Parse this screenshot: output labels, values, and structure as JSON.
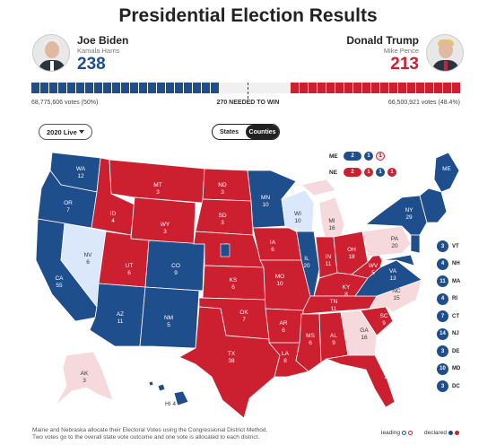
{
  "header": {
    "title": "Presidential Election Results"
  },
  "biden": {
    "name": "Joe Biden",
    "running_mate": "Kamala Harris",
    "electoral_votes": "238",
    "popular": "68,775,606 votes (50%)"
  },
  "trump": {
    "name": "Donald Trump",
    "running_mate": "Mike Pence",
    "electoral_votes": "213",
    "popular": "66,500,921 votes (48.4%)"
  },
  "bar": {
    "needed": "270 NEEDED TO WIN",
    "dem_fraction": 0.442,
    "rep_fraction": 0.396
  },
  "controls": {
    "year_label": "2020 Live",
    "tabs": [
      "States",
      "Counties"
    ],
    "active_tab": "Counties"
  },
  "colors": {
    "dem": "#1f4e8c",
    "rep": "#cc1f2f",
    "lean_dem": "#dbe7fa",
    "lean_rep": "#f6d9dc"
  },
  "states": [
    {
      "code": "WA",
      "ev": "12"
    },
    {
      "code": "OR",
      "ev": "7"
    },
    {
      "code": "CA",
      "ev": "55"
    },
    {
      "code": "NV",
      "ev": "6"
    },
    {
      "code": "ID",
      "ev": "4"
    },
    {
      "code": "MT",
      "ev": "3"
    },
    {
      "code": "WY",
      "ev": "3"
    },
    {
      "code": "UT",
      "ev": "6"
    },
    {
      "code": "AZ",
      "ev": "11"
    },
    {
      "code": "CO",
      "ev": "9"
    },
    {
      "code": "NM",
      "ev": "5"
    },
    {
      "code": "ND",
      "ev": "3"
    },
    {
      "code": "SD",
      "ev": "3"
    },
    {
      "code": "NE",
      "ev": ""
    },
    {
      "code": "KS",
      "ev": "6"
    },
    {
      "code": "OK",
      "ev": "7"
    },
    {
      "code": "TX",
      "ev": "38"
    },
    {
      "code": "MN",
      "ev": "10"
    },
    {
      "code": "IA",
      "ev": "6"
    },
    {
      "code": "MO",
      "ev": "10"
    },
    {
      "code": "AR",
      "ev": "6"
    },
    {
      "code": "LA",
      "ev": "8"
    },
    {
      "code": "WI",
      "ev": "10"
    },
    {
      "code": "IL",
      "ev": "20"
    },
    {
      "code": "MI",
      "ev": "16"
    },
    {
      "code": "IN",
      "ev": "11"
    },
    {
      "code": "OH",
      "ev": "18"
    },
    {
      "code": "KY",
      "ev": "8"
    },
    {
      "code": "TN",
      "ev": "11"
    },
    {
      "code": "MS",
      "ev": "6"
    },
    {
      "code": "AL",
      "ev": "9"
    },
    {
      "code": "GA",
      "ev": "16"
    },
    {
      "code": "FL",
      "ev": "29"
    },
    {
      "code": "SC",
      "ev": "9"
    },
    {
      "code": "NC",
      "ev": "15"
    },
    {
      "code": "VA",
      "ev": "13"
    },
    {
      "code": "WV",
      "ev": "5"
    },
    {
      "code": "PA",
      "ev": "20"
    },
    {
      "code": "NY",
      "ev": "29"
    },
    {
      "code": "ME",
      "ev": ""
    },
    {
      "code": "AK",
      "ev": "3"
    },
    {
      "code": "HI",
      "ev": "4"
    }
  ],
  "districts": {
    "me": {
      "label": "ME",
      "total": "2",
      "d1": "1",
      "d2": "1"
    },
    "ne": {
      "label": "NE",
      "total": "2",
      "d1": "1",
      "d2": "1",
      "d3": "1"
    }
  },
  "small_states": [
    {
      "code": "VT",
      "ev": "3"
    },
    {
      "code": "NH",
      "ev": "4"
    },
    {
      "code": "MA",
      "ev": "11"
    },
    {
      "code": "RI",
      "ev": "4"
    },
    {
      "code": "CT",
      "ev": "7"
    },
    {
      "code": "NJ",
      "ev": "14"
    },
    {
      "code": "DE",
      "ev": "3"
    },
    {
      "code": "MD",
      "ev": "10"
    },
    {
      "code": "DC",
      "ev": "3"
    }
  ],
  "footer": {
    "line1": "Maine and Nebraska allocate their Electoral Votes using the Congressional District Method.",
    "line2": "Two votes go to the overall state vote outcome and one vote is allocated to each district."
  },
  "legend": {
    "leading": "leading",
    "declared": "declared"
  }
}
